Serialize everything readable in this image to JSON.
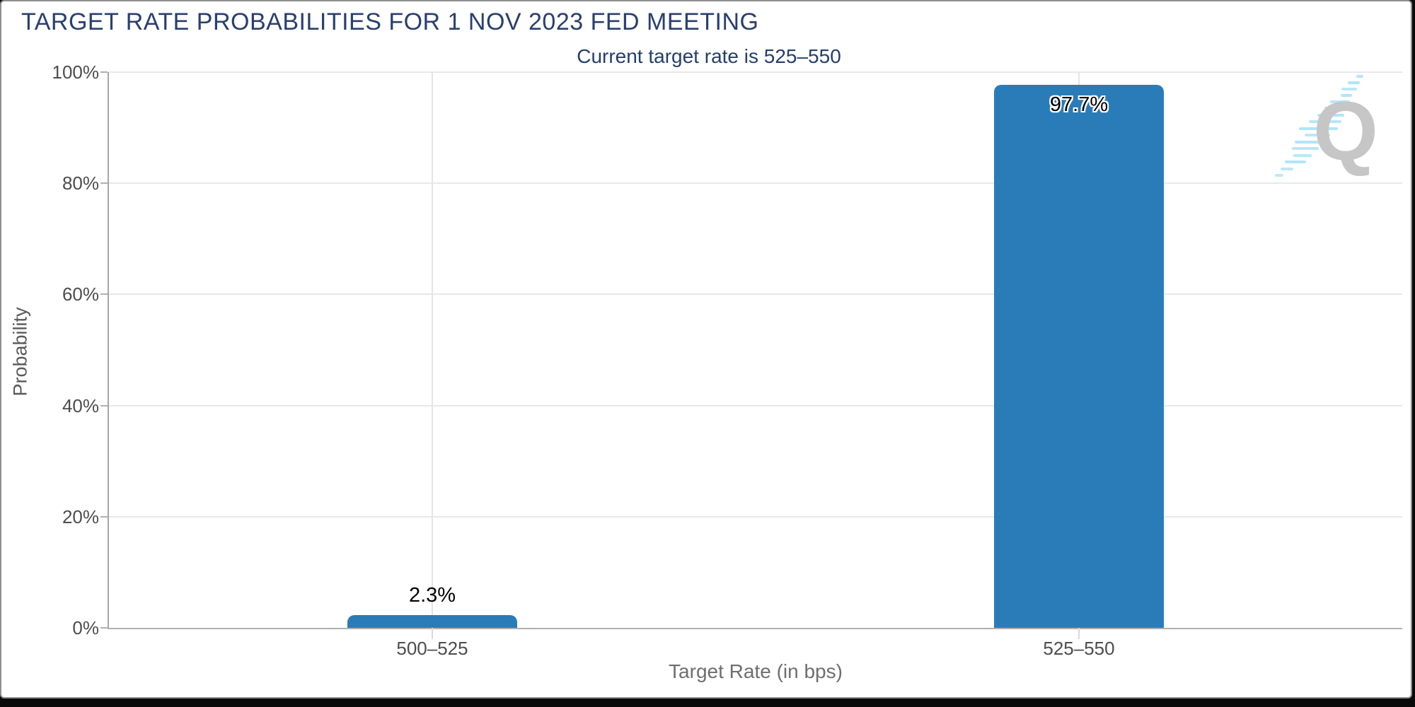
{
  "window": {
    "title": "TARGET RATE PROBABILITIES FOR 1 NOV 2023 FED MEETING"
  },
  "chart_data": {
    "type": "bar",
    "title": "TARGET RATE PROBABILITIES FOR 1 NOV 2023 FED MEETING",
    "subtitle": "Current target rate is 525–550",
    "categories": [
      "500–525",
      "525–550"
    ],
    "values": [
      2.3,
      97.7
    ],
    "value_labels": [
      "2.3%",
      "97.7%"
    ],
    "xlabel": "Target Rate (in bps)",
    "ylabel": "Probability",
    "ylim": [
      0,
      100
    ],
    "yticks": [
      0,
      20,
      40,
      60,
      80,
      100
    ],
    "ytick_labels": [
      "0%",
      "20%",
      "40%",
      "60%",
      "80%",
      "100%"
    ],
    "grid": true,
    "legend": "none",
    "bar_color": "#2a7cb8",
    "watermark": "Q"
  },
  "colors": {
    "title_navy": "#293f6f",
    "bar_blue": "#2a7cb8",
    "tick_gray": "#4d4d4d",
    "axis_gray": "#a6a6a6",
    "grid_gray": "#e8e8e8",
    "watermark_gray": "#c6c6c6",
    "watermark_blue": "#a9e2f8",
    "frame_black": "#0a0a0a"
  }
}
